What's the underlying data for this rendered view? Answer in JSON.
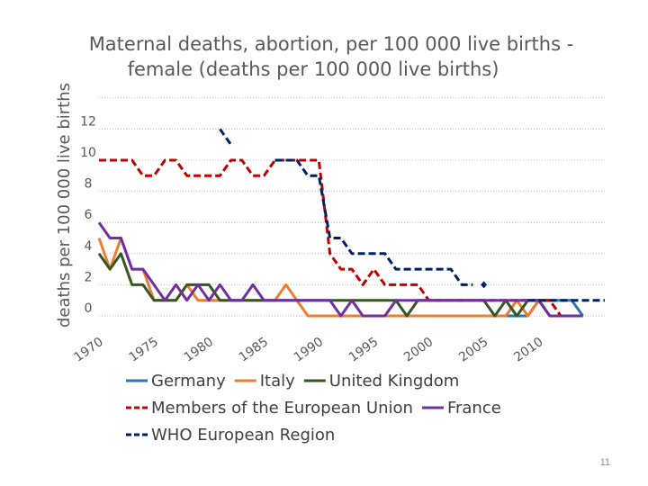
{
  "page_number": "11",
  "chart_data": {
    "type": "line",
    "title": "Maternal deaths, abortion, per 100 000 live births - female (deaths per 100 000 live births)",
    "title_lines": [
      "Maternal deaths, abortion, per 100 000 live births -",
      "female (deaths per 100 000 live births)"
    ],
    "ylabel": "deaths per 100 000 live births",
    "xlabel": "",
    "ylim": [
      0,
      14
    ],
    "xlim": [
      1970,
      2016
    ],
    "yticks": [
      0,
      2,
      4,
      6,
      8,
      10,
      12
    ],
    "xticks": [
      1970,
      1975,
      1980,
      1985,
      1990,
      1995,
      2000,
      2005,
      2010
    ],
    "grid": "horizontal dotted",
    "legend_position": "bottom",
    "series": [
      {
        "name": "Germany",
        "color": "#2e75b6",
        "dash": "solid",
        "x": [
          2000,
          2001,
          2002,
          2003,
          2004,
          2005,
          2006,
          2007,
          2008,
          2009,
          2010,
          2011,
          2012,
          2013,
          2014
        ],
        "y": [
          0,
          0,
          0,
          0,
          0,
          0,
          0,
          0,
          0,
          0,
          1,
          1,
          1,
          1,
          0
        ]
      },
      {
        "name": "Italy",
        "color": "#ed7d31",
        "dash": "solid",
        "x": [
          1970,
          1971,
          1972,
          1973,
          1974,
          1975,
          1976,
          1977,
          1978,
          1979,
          1980,
          1981,
          1982,
          1983,
          1984,
          1985,
          1986,
          1987,
          1988,
          1989,
          1990,
          1991,
          1992,
          1993,
          1994,
          1995,
          1996,
          1997,
          1998,
          1999,
          2000,
          2001,
          2002,
          2003,
          2004,
          2005,
          2006,
          2007,
          2008,
          2009,
          2010,
          2011
        ],
        "y": [
          5,
          3,
          5,
          3,
          3,
          1,
          1,
          1,
          2,
          1,
          1,
          1,
          1,
          1,
          1,
          1,
          1,
          2,
          1,
          0,
          0,
          0,
          0,
          0,
          0,
          0,
          0,
          0,
          0,
          0,
          0,
          0,
          0,
          0,
          0,
          0,
          0,
          0,
          1,
          0,
          1,
          1
        ]
      },
      {
        "name": "United Kingdom",
        "color": "#375623",
        "dash": "solid",
        "x": [
          1970,
          1971,
          1972,
          1973,
          1974,
          1975,
          1976,
          1977,
          1978,
          1979,
          1980,
          1981,
          1982,
          1983,
          1984,
          1985,
          1986,
          1987,
          1988,
          1989,
          1990,
          1991,
          1992,
          1993,
          1994,
          1995,
          1996,
          1997,
          1998,
          1999,
          2000,
          2001,
          2002,
          2003,
          2004,
          2005,
          2006,
          2007,
          2008,
          2009,
          2010,
          2011
        ],
        "y": [
          4,
          3,
          4,
          2,
          2,
          1,
          1,
          1,
          2,
          2,
          2,
          1,
          1,
          1,
          1,
          1,
          1,
          1,
          1,
          1,
          1,
          1,
          1,
          1,
          1,
          1,
          1,
          1,
          0,
          1,
          1,
          1,
          1,
          1,
          1,
          1,
          0,
          1,
          0,
          1,
          1,
          0
        ]
      },
      {
        "name": "Members of the European Union",
        "color": "#c00000",
        "dash": "dashed",
        "x": [
          1970,
          1971,
          1972,
          1973,
          1974,
          1975,
          1976,
          1977,
          1978,
          1979,
          1980,
          1981,
          1982,
          1983,
          1984,
          1985,
          1986,
          1987,
          1988,
          1989,
          1990,
          1991,
          1992,
          1993,
          1994,
          1995,
          1996,
          1997,
          1998,
          1999,
          2000,
          2001,
          2002,
          2003,
          2004,
          2005,
          2006,
          2007,
          2008,
          2009,
          2010,
          2011,
          2012
        ],
        "y": [
          10,
          10,
          10,
          10,
          9,
          9,
          10,
          10,
          9,
          9,
          9,
          9,
          10,
          10,
          9,
          9,
          10,
          10,
          10,
          10,
          10,
          4,
          3,
          3,
          2,
          3,
          2,
          2,
          2,
          2,
          1,
          1,
          1,
          1,
          1,
          1,
          1,
          1,
          1,
          1,
          1,
          1,
          0
        ]
      },
      {
        "name": "France",
        "color": "#7030a0",
        "dash": "solid",
        "x": [
          1970,
          1971,
          1972,
          1973,
          1974,
          1975,
          1976,
          1977,
          1978,
          1979,
          1980,
          1981,
          1982,
          1983,
          1984,
          1985,
          1986,
          1987,
          1988,
          1989,
          1990,
          1991,
          1992,
          1993,
          1994,
          1995,
          1996,
          1997,
          1998,
          1999,
          2000,
          2001,
          2002,
          2003,
          2004,
          2005,
          2006,
          2007,
          2008,
          2009,
          2010,
          2011,
          2012,
          2013,
          2014
        ],
        "y": [
          6,
          5,
          5,
          3,
          3,
          2,
          1,
          2,
          1,
          2,
          1,
          2,
          1,
          1,
          2,
          1,
          1,
          1,
          1,
          1,
          1,
          1,
          0,
          1,
          0,
          0,
          0,
          1,
          1,
          1,
          1,
          1,
          1,
          1,
          1,
          1,
          1,
          1,
          1,
          1,
          1,
          0,
          0,
          0,
          0
        ]
      },
      {
        "name": "WHO European Region",
        "color": "#002060",
        "dash": "dashed",
        "segments": [
          {
            "x": [
              1981,
              1982
            ],
            "y": [
              12,
              11
            ]
          },
          {
            "x": [
              1986,
              1987,
              1988,
              1989,
              1990,
              1991,
              1992,
              1993,
              1994,
              1995,
              1996,
              1997,
              1998,
              1999,
              2000,
              2001,
              2002,
              2003,
              2004
            ],
            "y": [
              10,
              10,
              10,
              9,
              9,
              5,
              5,
              4,
              4,
              4,
              4,
              3,
              3,
              3,
              3,
              3,
              3,
              2,
              2
            ]
          },
          {
            "x": [
              2005
            ],
            "y": [
              2
            ],
            "marker": true
          },
          {
            "x": [
              2009,
              2010,
              2011,
              2012,
              2013,
              2014,
              2015,
              2016
            ],
            "y": [
              1,
              1,
              1,
              1,
              1,
              1,
              1,
              1
            ]
          }
        ]
      }
    ],
    "legend_rows": [
      [
        "Germany",
        "Italy",
        "United Kingdom"
      ],
      [
        "Members of the European Union",
        "France"
      ],
      [
        "WHO European Region"
      ]
    ]
  }
}
